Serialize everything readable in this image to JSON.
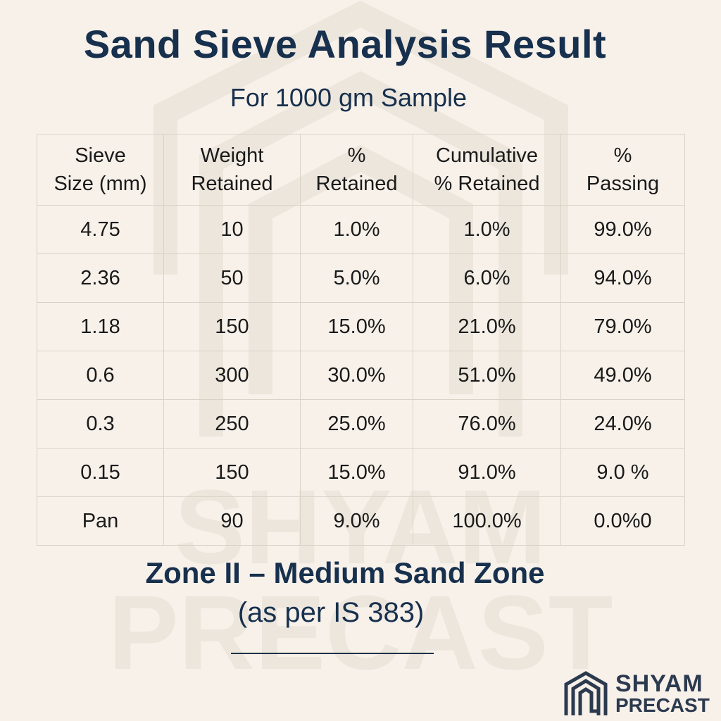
{
  "title": "Sand Sieve Analysis Result",
  "subtitle": "For 1000 gm Sample",
  "table": {
    "headers": [
      {
        "line1": "Sieve",
        "line2": "Size (mm)"
      },
      {
        "line1": "Weight",
        "line2": "Retained"
      },
      {
        "line1": "%",
        "line2": "Retained"
      },
      {
        "line1": "Cumulative",
        "line2": "% Retained"
      },
      {
        "line1": "%",
        "line2": "Passing"
      }
    ],
    "rows": [
      [
        "4.75",
        "10",
        "1.0%",
        "1.0%",
        "99.0%"
      ],
      [
        "2.36",
        "50",
        "5.0%",
        "6.0%",
        "94.0%"
      ],
      [
        "1.18",
        "150",
        "15.0%",
        "21.0%",
        "79.0%"
      ],
      [
        "0.6",
        "300",
        "30.0%",
        "51.0%",
        "49.0%"
      ],
      [
        "0.3",
        "250",
        "25.0%",
        "76.0%",
        "24.0%"
      ],
      [
        "0.15",
        "150",
        "15.0%",
        "91.0%",
        "9.0 %"
      ],
      [
        "Pan",
        "90",
        "9.0%",
        "100.0%",
        "0.0%0"
      ]
    ]
  },
  "zone": "Zone II – Medium Sand Zone",
  "standard": "(as per IS 383)",
  "logo": {
    "line1": "SHYAM",
    "line2": "PRECAST",
    "icon": "house-logo-icon"
  },
  "watermark": {
    "line1": "SHYAM",
    "line2": "PRECAST"
  },
  "colors": {
    "background": "#f8f1ea",
    "heading": "#17304d",
    "text": "#1a1a1a",
    "grid": "#d8d2c6"
  }
}
